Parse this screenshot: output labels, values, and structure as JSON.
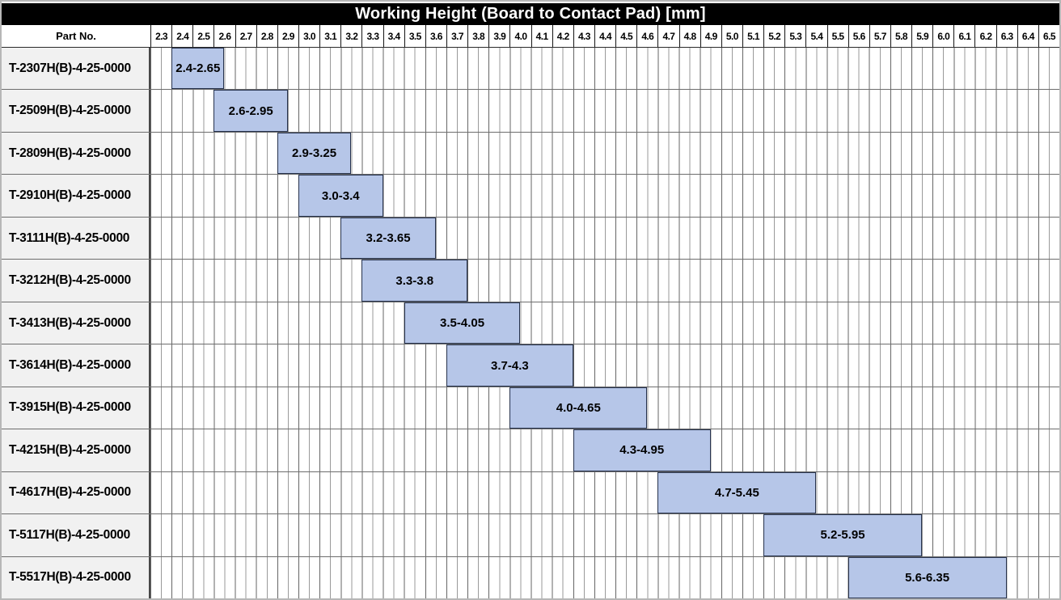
{
  "header": {
    "part_no_label": "Part No."
  },
  "colors": {
    "bar_fill": "#b6c6e8",
    "bar_border": "#26324d",
    "title_bg": "#000000",
    "title_text": "#ffffff",
    "row_label_bg": "#f1f1f1",
    "grid_major": "#666666",
    "grid_minor": "#9a9a9a"
  },
  "chart_data": {
    "type": "bar",
    "subtype": "horizontal_range_bars",
    "title": "Working Height (Board to Contact Pad) [mm]",
    "legend": "none",
    "grid": "on",
    "x_axis": {
      "min": 2.3,
      "max": 6.6,
      "step": 0.1,
      "minor_step": 0.05,
      "ticks": [
        "2.3",
        "2.4",
        "2.5",
        "2.6",
        "2.7",
        "2.8",
        "2.9",
        "3.0",
        "3.1",
        "3.2",
        "3.3",
        "3.4",
        "3.5",
        "3.6",
        "3.7",
        "3.8",
        "3.9",
        "4.0",
        "4.1",
        "4.2",
        "4.3",
        "4.4",
        "4.5",
        "4.6",
        "4.7",
        "4.8",
        "4.9",
        "5.0",
        "5.1",
        "5.2",
        "5.3",
        "5.4",
        "5.5",
        "5.6",
        "5.7",
        "5.8",
        "5.9",
        "6.0",
        "6.1",
        "6.2",
        "6.3",
        "6.4",
        "6.5"
      ]
    },
    "rows": [
      {
        "part_no": "T-2307H(B)-4-25-0000",
        "range_label": "2.4-2.65",
        "start": 2.4,
        "end": 2.65
      },
      {
        "part_no": "T-2509H(B)-4-25-0000",
        "range_label": "2.6-2.95",
        "start": 2.6,
        "end": 2.95
      },
      {
        "part_no": "T-2809H(B)-4-25-0000",
        "range_label": "2.9-3.25",
        "start": 2.9,
        "end": 3.25
      },
      {
        "part_no": "T-2910H(B)-4-25-0000",
        "range_label": "3.0-3.4",
        "start": 3.0,
        "end": 3.4
      },
      {
        "part_no": "T-3111H(B)-4-25-0000",
        "range_label": "3.2-3.65",
        "start": 3.2,
        "end": 3.65
      },
      {
        "part_no": "T-3212H(B)-4-25-0000",
        "range_label": "3.3-3.8",
        "start": 3.3,
        "end": 3.8
      },
      {
        "part_no": "T-3413H(B)-4-25-0000",
        "range_label": "3.5-4.05",
        "start": 3.5,
        "end": 4.05
      },
      {
        "part_no": "T-3614H(B)-4-25-0000",
        "range_label": "3.7-4.3",
        "start": 3.7,
        "end": 4.3
      },
      {
        "part_no": "T-3915H(B)-4-25-0000",
        "range_label": "4.0-4.65",
        "start": 4.0,
        "end": 4.65
      },
      {
        "part_no": "T-4215H(B)-4-25-0000",
        "range_label": "4.3-4.95",
        "start": 4.3,
        "end": 4.95
      },
      {
        "part_no": "T-4617H(B)-4-25-0000",
        "range_label": "4.7-5.45",
        "start": 4.7,
        "end": 5.45
      },
      {
        "part_no": "T-5117H(B)-4-25-0000",
        "range_label": "5.2-5.95",
        "start": 5.2,
        "end": 5.95
      },
      {
        "part_no": "T-5517H(B)-4-25-0000",
        "range_label": "5.6-6.35",
        "start": 5.6,
        "end": 6.35
      }
    ]
  }
}
